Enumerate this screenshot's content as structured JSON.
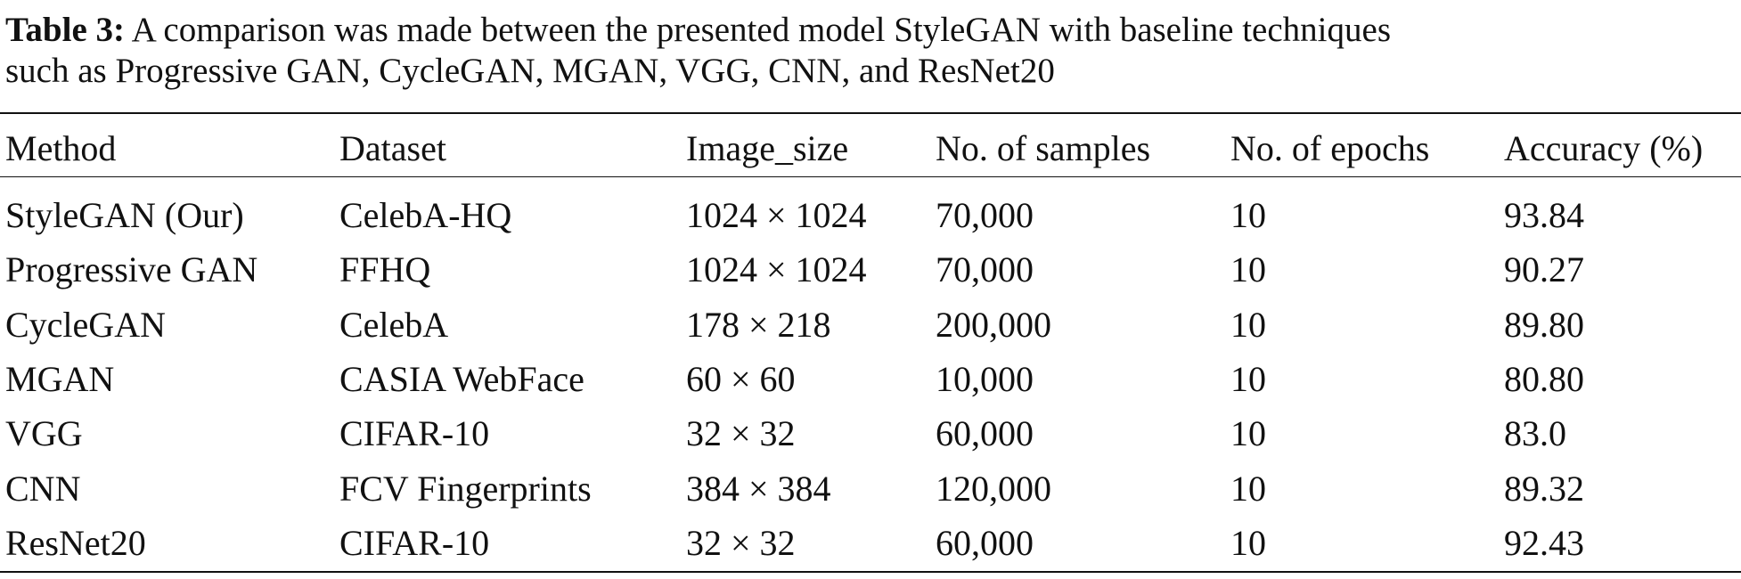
{
  "caption": {
    "label": "Table 3:",
    "line1": "A comparison was made between the presented model StyleGAN with baseline techniques",
    "line2": "such as Progressive GAN, CycleGAN, MGAN, VGG, CNN, and ResNet20"
  },
  "table": {
    "header": [
      "Method",
      "Dataset",
      "Image_size",
      "No. of samples",
      "No. of epochs",
      "Accuracy (%)"
    ],
    "rows": [
      [
        "StyleGAN (Our)",
        "CelebA-HQ",
        "1024 × 1024",
        "70,000",
        "10",
        "93.84"
      ],
      [
        "Progressive GAN",
        "FFHQ",
        "1024 × 1024",
        "70,000",
        "10",
        "90.27"
      ],
      [
        "CycleGAN",
        "CelebA",
        "178 × 218",
        "200,000",
        "10",
        "89.80"
      ],
      [
        "MGAN",
        "CASIA WebFace",
        "60 × 60",
        "10,000",
        "10",
        "80.80"
      ],
      [
        "VGG",
        "CIFAR-10",
        "32 × 32",
        "60,000",
        "10",
        "83.0"
      ],
      [
        "CNN",
        "FCV Fingerprints",
        "384 × 384",
        "120,000",
        "10",
        "89.32"
      ],
      [
        "ResNet20",
        "CIFAR-10",
        "32 × 32",
        "60,000",
        "10",
        "92.43"
      ]
    ]
  }
}
